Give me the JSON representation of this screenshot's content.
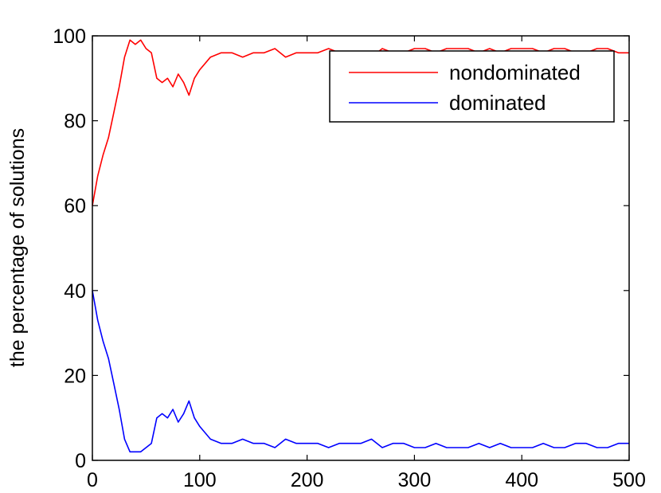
{
  "chart_data": {
    "type": "line",
    "title": "",
    "xlabel": "",
    "ylabel": "the percentage of solutions",
    "xlim": [
      0,
      500
    ],
    "ylim": [
      0,
      100
    ],
    "xticks": [
      0,
      100,
      200,
      300,
      400,
      500
    ],
    "yticks": [
      0,
      20,
      40,
      60,
      80,
      100
    ],
    "grid": false,
    "legend": "top-right",
    "x": [
      0,
      5,
      10,
      15,
      20,
      25,
      30,
      35,
      40,
      45,
      50,
      55,
      60,
      65,
      70,
      75,
      80,
      85,
      90,
      95,
      100,
      110,
      120,
      130,
      140,
      150,
      160,
      170,
      180,
      190,
      200,
      210,
      220,
      230,
      240,
      250,
      260,
      270,
      280,
      290,
      300,
      310,
      320,
      330,
      340,
      350,
      360,
      370,
      380,
      390,
      400,
      410,
      420,
      430,
      440,
      450,
      460,
      470,
      480,
      490,
      500
    ],
    "series": [
      {
        "name": "nondominated",
        "color": "#ff0000",
        "values": [
          60,
          67,
          72,
          76,
          82,
          88,
          95,
          99,
          98,
          99,
          97,
          96,
          90,
          89,
          90,
          88,
          91,
          89,
          86,
          90,
          92,
          95,
          96,
          96,
          95,
          96,
          96,
          97,
          95,
          96,
          96,
          96,
          97,
          96,
          96,
          96,
          95,
          97,
          96,
          96,
          97,
          97,
          96,
          97,
          97,
          97,
          96,
          97,
          96,
          97,
          97,
          97,
          96,
          97,
          97,
          96,
          96,
          97,
          97,
          96,
          96
        ]
      },
      {
        "name": "dominated",
        "color": "#0000ff",
        "values": [
          40,
          33,
          28,
          24,
          18,
          12,
          5,
          2,
          2,
          2,
          3,
          4,
          10,
          11,
          10,
          12,
          9,
          11,
          14,
          10,
          8,
          5,
          4,
          4,
          5,
          4,
          4,
          3,
          5,
          4,
          4,
          4,
          3,
          4,
          4,
          4,
          5,
          3,
          4,
          4,
          3,
          3,
          4,
          3,
          3,
          3,
          4,
          3,
          4,
          3,
          3,
          3,
          4,
          3,
          3,
          4,
          4,
          3,
          3,
          4,
          4
        ]
      }
    ]
  }
}
